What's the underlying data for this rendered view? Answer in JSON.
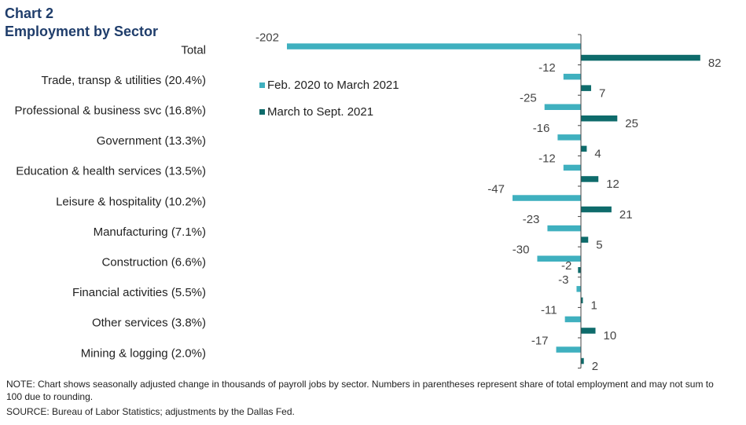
{
  "title_line1": "Chart 2",
  "title_line2": "Employment by Sector",
  "note": "NOTE: Chart shows seasonally adjusted change in thousands of payroll jobs by sector. Numbers in parentheses represent share of total employment and may not sum to 100 due to rounding.",
  "source": "SOURCE: Bureau of Labor Statistics; adjustments by the Dallas Fed.",
  "colors": {
    "series1": "#3fb0bf",
    "series2": "#0e6b6b",
    "axis": "#444444"
  },
  "chart_data": {
    "type": "bar",
    "orientation": "horizontal",
    "title": "Employment by Sector",
    "categories": [
      "Total",
      "Trade, transp & utilities (20.4%)",
      "Professional & business svc (16.8%)",
      "Government (13.3%)",
      "Education & health services (13.5%)",
      "Leisure & hospitality (10.2%)",
      "Manufacturing (7.1%)",
      "Construction (6.6%)",
      "Financial activities (5.5%)",
      "Other services (3.8%)",
      "Mining & logging (2.0%)"
    ],
    "series": [
      {
        "name": "Feb. 2020 to March 2021",
        "values": [
          -202,
          -12,
          -25,
          -16,
          -12,
          -47,
          -23,
          -30,
          -3,
          -11,
          -17
        ]
      },
      {
        "name": "March to Sept. 2021",
        "values": [
          82,
          7,
          25,
          4,
          12,
          21,
          5,
          -2,
          1,
          10,
          2
        ]
      }
    ],
    "legend_position": "top-left",
    "grid": false
  }
}
